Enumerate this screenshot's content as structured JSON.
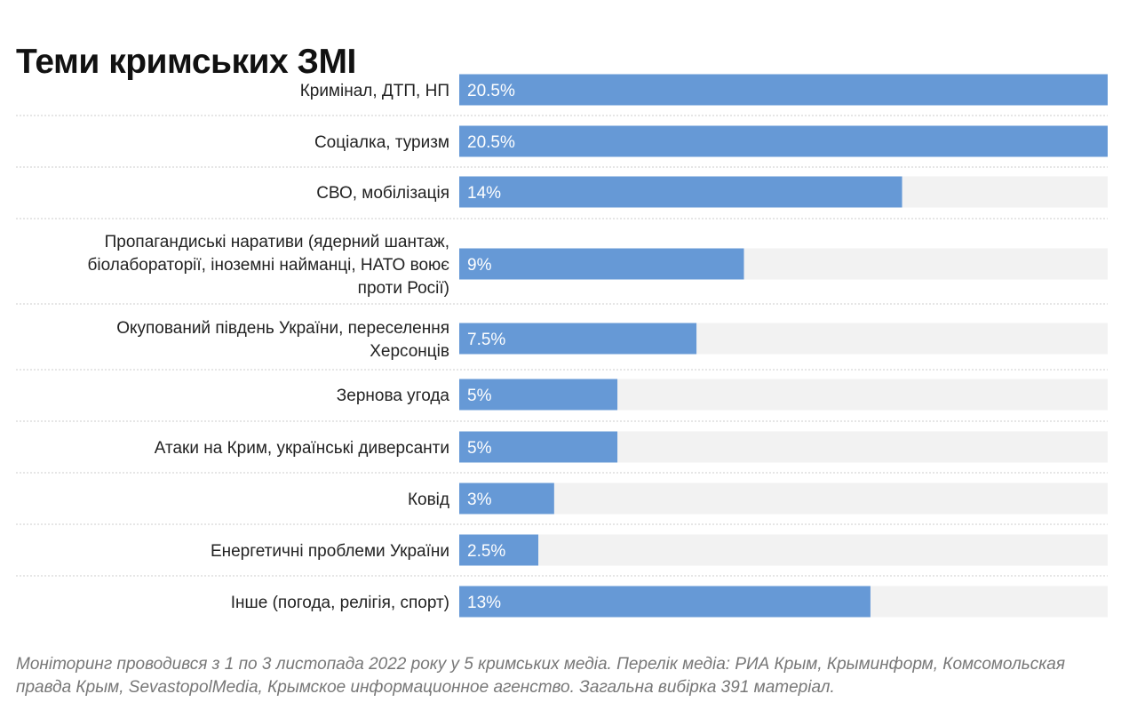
{
  "chart_data": {
    "type": "bar",
    "orientation": "horizontal",
    "title": "Теми кримських ЗМІ",
    "categories": [
      "Кримінал, ДТП, НП",
      "Соціалка, туризм",
      "СВО, мобілізація",
      "Пропагандиські наративи (ядерний шантаж, біолабораторії, іноземні найманці, НАТО воює проти Росії)",
      "Окупований південь України, переселення Херсонців",
      "Зернова угода",
      "Атаки на Крим, українські диверсанти",
      "Ковід",
      "Енергетичні проблеми України",
      "Інше (погода, релігія, спорт)"
    ],
    "label_lines": [
      [
        "Кримінал, ДТП, НП"
      ],
      [
        "Соціалка, туризм"
      ],
      [
        "СВО, мобілізація"
      ],
      [
        "Пропагандиські наративи (ядерний шантаж,",
        "біолабораторії, іноземні найманці, НАТО воює",
        "проти Росії)"
      ],
      [
        "Окупований південь України, переселення",
        "Херсонців"
      ],
      [
        "Зернова угода"
      ],
      [
        "Атаки на Крим, українські диверсанти"
      ],
      [
        "Ковід"
      ],
      [
        "Енергетичні проблеми України"
      ],
      [
        "Інше (погода, релігія, спорт)"
      ]
    ],
    "values": [
      20.5,
      20.5,
      14,
      9,
      7.5,
      5,
      5,
      3,
      2.5,
      13
    ],
    "value_labels": [
      "20.5%",
      "20.5%",
      "14%",
      "9%",
      "7.5%",
      "5%",
      "5%",
      "3%",
      "2.5%",
      "13%"
    ],
    "xlim": [
      0,
      20.5
    ],
    "bar_color": "#6699d6",
    "track_color": "#f2f2f2",
    "grid": false
  },
  "note": "Моніторинг проводився з 1 по 3 листопада 2022 року у 5 кримських медіа. Перелік медіа: РИА Крым, Крыминформ, Комсомольская правда Крым, SevastopolMedia, Крымское информационное агенство. Загальна вибірка 391 матеріал."
}
